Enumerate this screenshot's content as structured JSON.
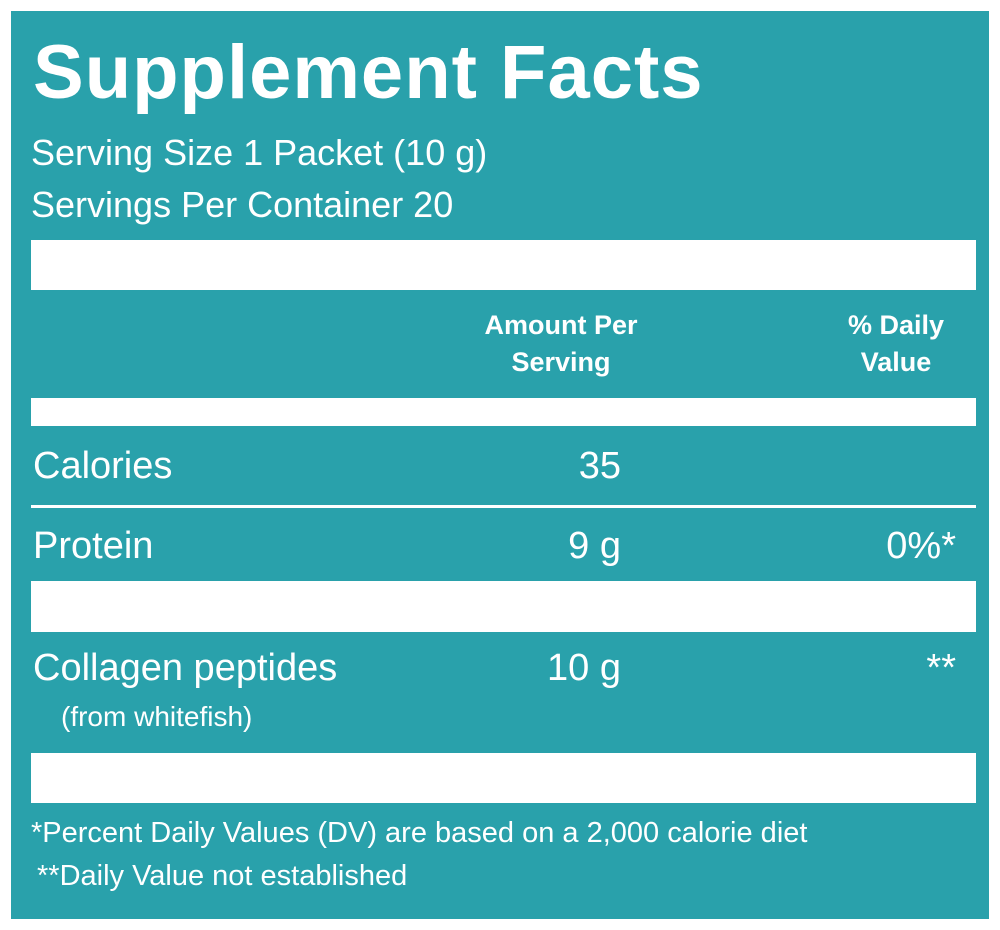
{
  "label": {
    "title": "Supplement Facts",
    "serving_size": "Serving Size 1 Packet (10 g)",
    "servings_per_container": "Servings Per Container 20",
    "columns": {
      "amount_line1": "Amount Per",
      "amount_line2": "Serving",
      "dv_line1": "% Daily",
      "dv_line2": "Value"
    },
    "rows": [
      {
        "name": "Calories",
        "amount": "35",
        "dv": ""
      },
      {
        "name": "Protein",
        "amount": "9 g",
        "dv": "0%*"
      },
      {
        "name": "Collagen peptides",
        "amount": "10 g",
        "dv": "**",
        "note": "(from whitefish)"
      }
    ],
    "footnotes": [
      "*Percent Daily Values (DV) are based on a 2,000 calorie diet",
      "**Daily Value not established"
    ]
  },
  "colors": {
    "panel": "#29a1ab",
    "text": "#ffffff",
    "border": "#ffffff"
  }
}
